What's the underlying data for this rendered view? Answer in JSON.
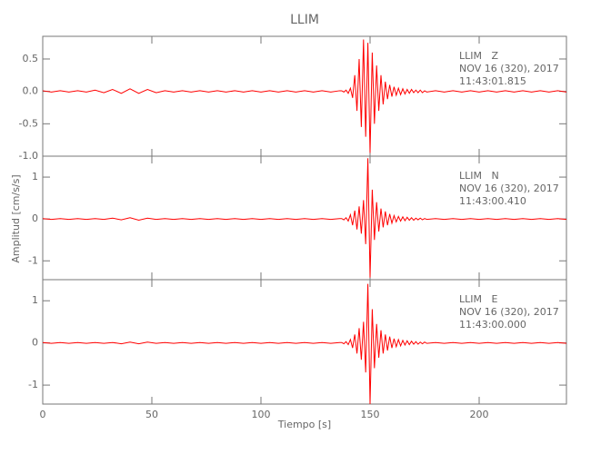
{
  "chart_data": [
    {
      "type": "line",
      "title": "LLIM",
      "annotations": [
        "LLIM   Z",
        "NOV 16 (320), 2017",
        "11:43:01.815"
      ],
      "xlim": [
        0,
        240
      ],
      "ylim": [
        -1.0,
        0.85
      ],
      "yticks": [
        {
          "value": -1,
          "label": "-1.0"
        },
        -0.5,
        {
          "value": 0,
          "label": "0.0"
        },
        0.5
      ],
      "x": [
        0,
        4,
        8,
        12,
        16,
        20,
        24,
        28,
        32,
        36,
        40,
        44,
        48,
        52,
        56,
        60,
        64,
        68,
        72,
        76,
        80,
        84,
        88,
        92,
        96,
        100,
        104,
        108,
        112,
        116,
        120,
        124,
        128,
        132,
        136,
        137,
        138,
        139,
        140,
        141,
        142,
        143,
        144,
        145,
        146,
        147,
        148,
        149,
        150,
        151,
        152,
        153,
        154,
        155,
        156,
        157,
        158,
        159,
        160,
        161,
        162,
        163,
        164,
        165,
        166,
        167,
        168,
        169,
        170,
        171,
        172,
        173,
        174,
        175,
        176,
        180,
        184,
        188,
        192,
        196,
        200,
        204,
        208,
        212,
        216,
        220,
        224,
        228,
        232,
        236,
        240
      ],
      "series": [
        {
          "color": "#ff0000",
          "values": [
            0.01,
            -0.01,
            0.01,
            -0.01,
            0.01,
            -0.01,
            0.02,
            -0.02,
            0.03,
            -0.03,
            0.04,
            -0.03,
            0.03,
            -0.02,
            0.01,
            -0.01,
            0.01,
            -0.01,
            0.01,
            -0.01,
            0.01,
            -0.01,
            0.01,
            -0.01,
            0.01,
            -0.01,
            0.01,
            -0.01,
            0.01,
            -0.01,
            0.01,
            -0.01,
            0.01,
            -0.01,
            0.01,
            0.01,
            -0.01,
            0.02,
            -0.03,
            0.05,
            -0.1,
            0.25,
            -0.3,
            0.5,
            -0.55,
            0.8,
            -0.7,
            0.75,
            -0.95,
            0.6,
            -0.5,
            0.4,
            -0.3,
            0.25,
            -0.2,
            0.15,
            -0.12,
            0.1,
            -0.08,
            0.07,
            -0.06,
            0.05,
            -0.05,
            0.04,
            -0.04,
            0.03,
            -0.03,
            0.03,
            -0.02,
            0.02,
            -0.02,
            0.02,
            -0.02,
            0.01,
            -0.01,
            0.01,
            -0.01,
            0.01,
            -0.01,
            0.01,
            -0.01,
            0.01,
            -0.01,
            0.01,
            -0.01,
            0.01,
            -0.01,
            0.01,
            -0.01,
            0.01,
            -0.01
          ]
        }
      ]
    },
    {
      "type": "line",
      "ylabel": "Amplitud [cm/s/s]",
      "annotations": [
        "LLIM   N",
        "NOV 16 (320), 2017",
        "11:43:00.410"
      ],
      "xlim": [
        0,
        240
      ],
      "ylim": [
        -1.45,
        1.5
      ],
      "yticks": [
        -1,
        0,
        1
      ],
      "x": [
        0,
        4,
        8,
        12,
        16,
        20,
        24,
        28,
        32,
        36,
        40,
        44,
        48,
        52,
        56,
        60,
        64,
        68,
        72,
        76,
        80,
        84,
        88,
        92,
        96,
        100,
        104,
        108,
        112,
        116,
        120,
        124,
        128,
        132,
        136,
        137,
        138,
        139,
        140,
        141,
        142,
        143,
        144,
        145,
        146,
        147,
        148,
        149,
        150,
        151,
        152,
        153,
        154,
        155,
        156,
        157,
        158,
        159,
        160,
        161,
        162,
        163,
        164,
        165,
        166,
        167,
        168,
        169,
        170,
        171,
        172,
        173,
        174,
        175,
        176,
        180,
        184,
        188,
        192,
        196,
        200,
        204,
        208,
        212,
        216,
        220,
        224,
        228,
        232,
        236,
        240
      ],
      "series": [
        {
          "color": "#ff0000",
          "values": [
            0.01,
            -0.01,
            0.01,
            -0.01,
            0.01,
            -0.01,
            0.01,
            -0.01,
            0.02,
            -0.02,
            0.03,
            -0.03,
            0.02,
            -0.01,
            0.01,
            -0.01,
            0.01,
            -0.01,
            0.01,
            -0.01,
            0.01,
            -0.01,
            0.01,
            -0.01,
            0.01,
            -0.01,
            0.01,
            -0.01,
            0.01,
            -0.01,
            0.01,
            -0.01,
            0.01,
            -0.01,
            0.01,
            0.01,
            -0.02,
            0.03,
            -0.05,
            0.1,
            -0.15,
            0.2,
            -0.25,
            0.3,
            -0.35,
            0.45,
            -0.6,
            1.45,
            -1.4,
            0.7,
            -0.5,
            0.4,
            -0.3,
            0.25,
            -0.2,
            0.18,
            -0.15,
            0.12,
            -0.1,
            0.08,
            -0.07,
            0.06,
            -0.05,
            0.05,
            -0.04,
            0.04,
            -0.03,
            0.03,
            -0.03,
            0.02,
            -0.02,
            0.02,
            -0.02,
            0.01,
            -0.01,
            0.01,
            -0.01,
            0.01,
            -0.01,
            0.01,
            -0.01,
            0.01,
            -0.01,
            0.01,
            -0.01,
            0.01,
            -0.01,
            0.01,
            -0.01,
            0.01,
            -0.01
          ]
        }
      ]
    },
    {
      "type": "line",
      "xlabel": "Tiempo [s]",
      "annotations": [
        "LLIM   E",
        "NOV 16 (320), 2017",
        "11:43:00.000"
      ],
      "xlim": [
        0,
        240
      ],
      "ylim": [
        -1.45,
        1.5
      ],
      "yticks": [
        -1,
        0,
        1
      ],
      "xticks": [
        0,
        50,
        100,
        150,
        200
      ],
      "x": [
        0,
        4,
        8,
        12,
        16,
        20,
        24,
        28,
        32,
        36,
        40,
        44,
        48,
        52,
        56,
        60,
        64,
        68,
        72,
        76,
        80,
        84,
        88,
        92,
        96,
        100,
        104,
        108,
        112,
        116,
        120,
        124,
        128,
        132,
        136,
        137,
        138,
        139,
        140,
        141,
        142,
        143,
        144,
        145,
        146,
        147,
        148,
        149,
        150,
        151,
        152,
        153,
        154,
        155,
        156,
        157,
        158,
        159,
        160,
        161,
        162,
        163,
        164,
        165,
        166,
        167,
        168,
        169,
        170,
        171,
        172,
        173,
        174,
        175,
        176,
        180,
        184,
        188,
        192,
        196,
        200,
        204,
        208,
        212,
        216,
        220,
        224,
        228,
        232,
        236,
        240
      ],
      "series": [
        {
          "color": "#ff0000",
          "values": [
            0.01,
            -0.01,
            0.01,
            -0.01,
            0.01,
            -0.01,
            0.01,
            -0.01,
            0.01,
            -0.02,
            0.02,
            -0.02,
            0.02,
            -0.01,
            0.01,
            -0.01,
            0.01,
            -0.01,
            0.01,
            -0.01,
            0.01,
            -0.01,
            0.01,
            -0.01,
            0.01,
            -0.01,
            0.01,
            -0.01,
            0.01,
            -0.01,
            0.01,
            -0.01,
            0.01,
            -0.01,
            0.01,
            0.01,
            -0.02,
            0.03,
            -0.04,
            0.08,
            -0.12,
            0.2,
            -0.25,
            0.35,
            -0.4,
            0.5,
            -0.7,
            1.4,
            -1.45,
            0.8,
            -0.6,
            0.45,
            -0.35,
            0.3,
            -0.25,
            0.2,
            -0.18,
            0.15,
            -0.12,
            0.1,
            -0.09,
            0.08,
            -0.07,
            0.06,
            -0.05,
            0.05,
            -0.04,
            0.04,
            -0.03,
            0.03,
            -0.03,
            0.02,
            -0.02,
            0.02,
            -0.01,
            0.01,
            -0.01,
            0.01,
            -0.01,
            0.01,
            -0.01,
            0.01,
            -0.01,
            0.01,
            -0.01,
            0.01,
            -0.01,
            0.01,
            -0.01,
            0.01,
            -0.01
          ]
        }
      ]
    }
  ]
}
